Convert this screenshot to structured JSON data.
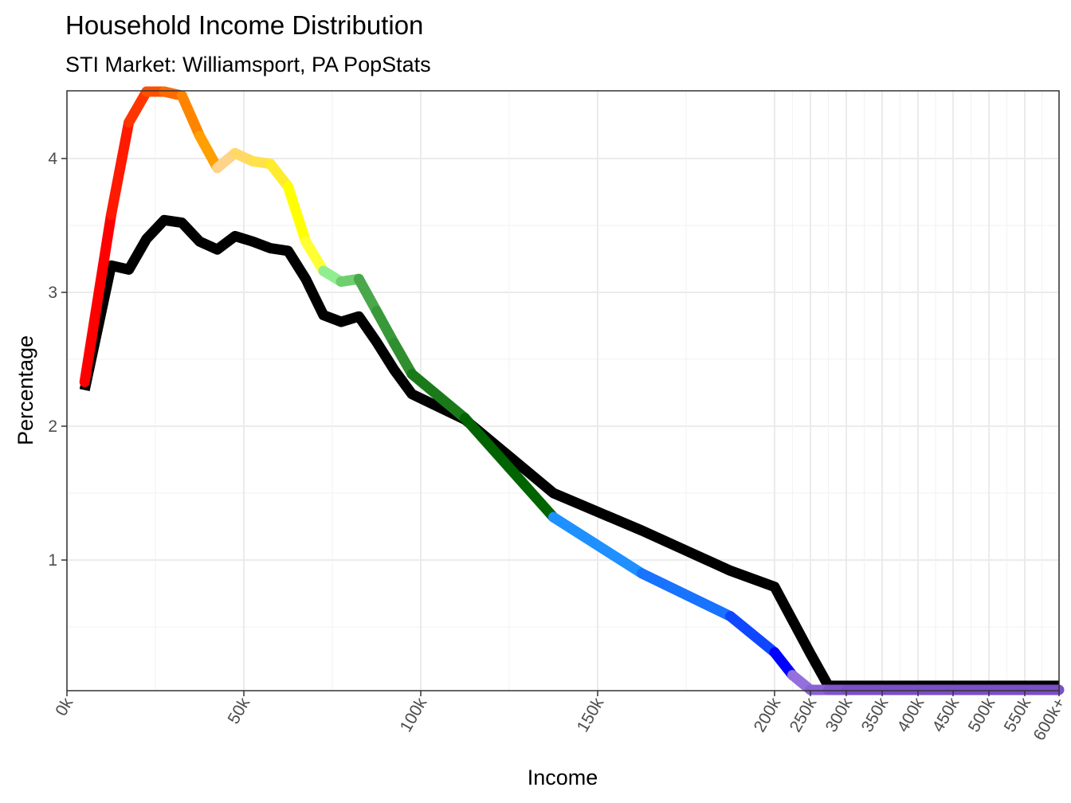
{
  "chart_data": {
    "type": "line",
    "title": "Household Income Distribution",
    "subtitle": "STI Market: Williamsport, PA PopStats",
    "xlabel": "Income",
    "ylabel": "Percentage",
    "ylim": [
      0,
      4.5
    ],
    "y_ticks": [
      1,
      2,
      3,
      4
    ],
    "x_ticks": [
      {
        "label": "0k",
        "value": 0
      },
      {
        "label": "50k",
        "value": 50
      },
      {
        "label": "100k",
        "value": 100
      },
      {
        "label": "150k",
        "value": 150
      },
      {
        "label": "200k",
        "value": 200
      },
      {
        "label": "250k",
        "value": 250
      },
      {
        "label": "300k",
        "value": 300
      },
      {
        "label": "350k",
        "value": 350
      },
      {
        "label": "400k",
        "value": 400
      },
      {
        "label": "450k",
        "value": 450
      },
      {
        "label": "500k",
        "value": 500
      },
      {
        "label": "550k",
        "value": 550
      },
      {
        "label": "600k+",
        "value": 600
      }
    ],
    "x_scale": "piecewise: linear 0k-200k, compressed 200k-600k+",
    "grid": true,
    "legend": "none",
    "series": [
      {
        "line_color": "#000000",
        "x": [
          5,
          12.5,
          17.5,
          22.5,
          27.5,
          32.5,
          37.5,
          42.5,
          47.5,
          52.5,
          57.5,
          62.5,
          67.5,
          72.5,
          77.5,
          82.5,
          87.5,
          92.5,
          97.5,
          112.5,
          137.5,
          162.5,
          187.5,
          200,
          225,
          250,
          275,
          300,
          325,
          350,
          375,
          400,
          425,
          450,
          475,
          500,
          525,
          550,
          575,
          600
        ],
        "y": [
          2.27,
          3.2,
          3.17,
          3.4,
          3.54,
          3.52,
          3.38,
          3.32,
          3.42,
          3.38,
          3.33,
          3.31,
          3.1,
          2.83,
          2.78,
          2.82,
          2.63,
          2.42,
          2.24,
          2.05,
          1.5,
          1.22,
          0.92,
          0.8,
          0.55,
          0.3,
          0.06,
          0.06,
          0.06,
          0.06,
          0.06,
          0.06,
          0.06,
          0.06,
          0.06,
          0.06,
          0.06,
          0.06,
          0.06,
          0.06
        ]
      },
      {
        "line_color": "gradient",
        "x": [
          5,
          12.5,
          17.5,
          22.5,
          27.5,
          32.5,
          37.5,
          42.5,
          47.5,
          52.5,
          57.5,
          62.5,
          67.5,
          72.5,
          77.5,
          82.5,
          87.5,
          92.5,
          97.5,
          112.5,
          137.5,
          162.5,
          187.5,
          200,
          225,
          250,
          275,
          300,
          325,
          350,
          375,
          400,
          425,
          450,
          475,
          500,
          525,
          550,
          575,
          600
        ],
        "y": [
          2.33,
          3.58,
          4.27,
          4.5,
          4.5,
          4.47,
          4.17,
          3.93,
          4.04,
          3.98,
          3.96,
          3.79,
          3.38,
          3.16,
          3.08,
          3.1,
          2.86,
          2.62,
          2.39,
          2.06,
          1.32,
          0.9,
          0.58,
          0.31,
          0.14,
          0.03,
          0.03,
          0.03,
          0.03,
          0.03,
          0.03,
          0.03,
          0.03,
          0.03,
          0.03,
          0.03,
          0.03,
          0.03,
          0.03,
          0.03
        ],
        "segment_colors": [
          "#ff0000",
          "#ff1a00",
          "#ff3500",
          "#ff5000",
          "#ff6a00",
          "#ff8500",
          "#ffa000",
          "#ffd38a",
          "#ffd966",
          "#ffe24a",
          "#ffec2e",
          "#ffff00",
          "#ffff33",
          "#90ee90",
          "#6fcf6f",
          "#4aa84a",
          "#389938",
          "#2f8f2f",
          "#1a7a1a",
          "#006400",
          "#1e90ff",
          "#1873ff",
          "#0f47ff",
          "#0000ff",
          "#9370db",
          "#8a62d4",
          "#8055cc",
          "#7a4fc7",
          "#7a4fc7",
          "#7a4fc7",
          "#7a4fc7",
          "#7a4fc7",
          "#7a4fc7",
          "#7a4fc7",
          "#7a4fc7",
          "#7a4fc7",
          "#7a4fc7",
          "#7a4fc7",
          "#7a4fc7"
        ]
      }
    ]
  }
}
